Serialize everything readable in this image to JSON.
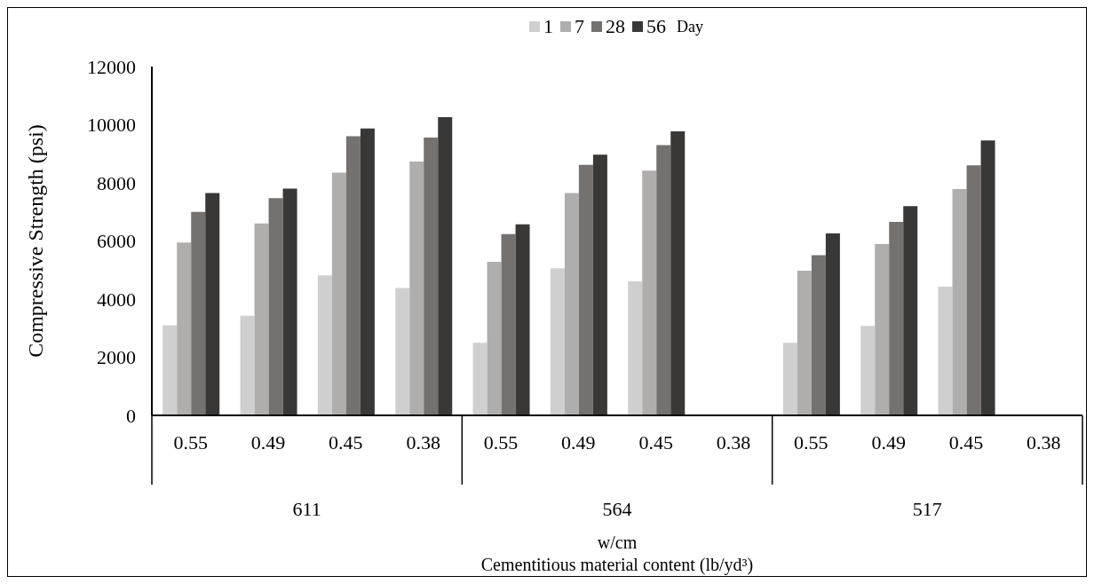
{
  "chart_data": {
    "type": "bar",
    "xlabel": "w/cm",
    "ylabel": "Compressive Strength (psi)",
    "legend_title": "Day",
    "categories": [
      "0.55",
      "0.49",
      "0.45",
      "0.38",
      "0.55",
      "0.49",
      "0.45",
      "0.38",
      "0.55",
      "0.49",
      "0.45",
      "0.38"
    ],
    "series": [
      {
        "name": "1",
        "color": "#d0cfd0",
        "values": [
          3100,
          3430,
          4820,
          4380,
          2500,
          5060,
          4610,
          null,
          2500,
          3080,
          4430,
          null
        ]
      },
      {
        "name": "7",
        "color": "#b0adad",
        "values": [
          5950,
          6600,
          8350,
          8730,
          5280,
          7650,
          8420,
          null,
          4980,
          5890,
          7790,
          null
        ]
      },
      {
        "name": "28",
        "color": "#75716f",
        "values": [
          7000,
          7470,
          9600,
          9560,
          6240,
          8620,
          9300,
          null,
          5510,
          6660,
          8600,
          null
        ]
      },
      {
        "name": "56",
        "color": "#3a3836",
        "values": [
          7650,
          7800,
          9870,
          10260,
          6570,
          8970,
          9770,
          null,
          6260,
          7200,
          9460,
          null
        ]
      }
    ],
    "annotations": [
      "611",
      "564",
      "517",
      "Cementitious material content (lb/yd³)"
    ],
    "ylim": [
      0,
      12000
    ],
    "yticks": [
      0,
      2000,
      4000,
      6000,
      8000,
      10000,
      12000
    ],
    "grid": false,
    "legend": "top"
  }
}
